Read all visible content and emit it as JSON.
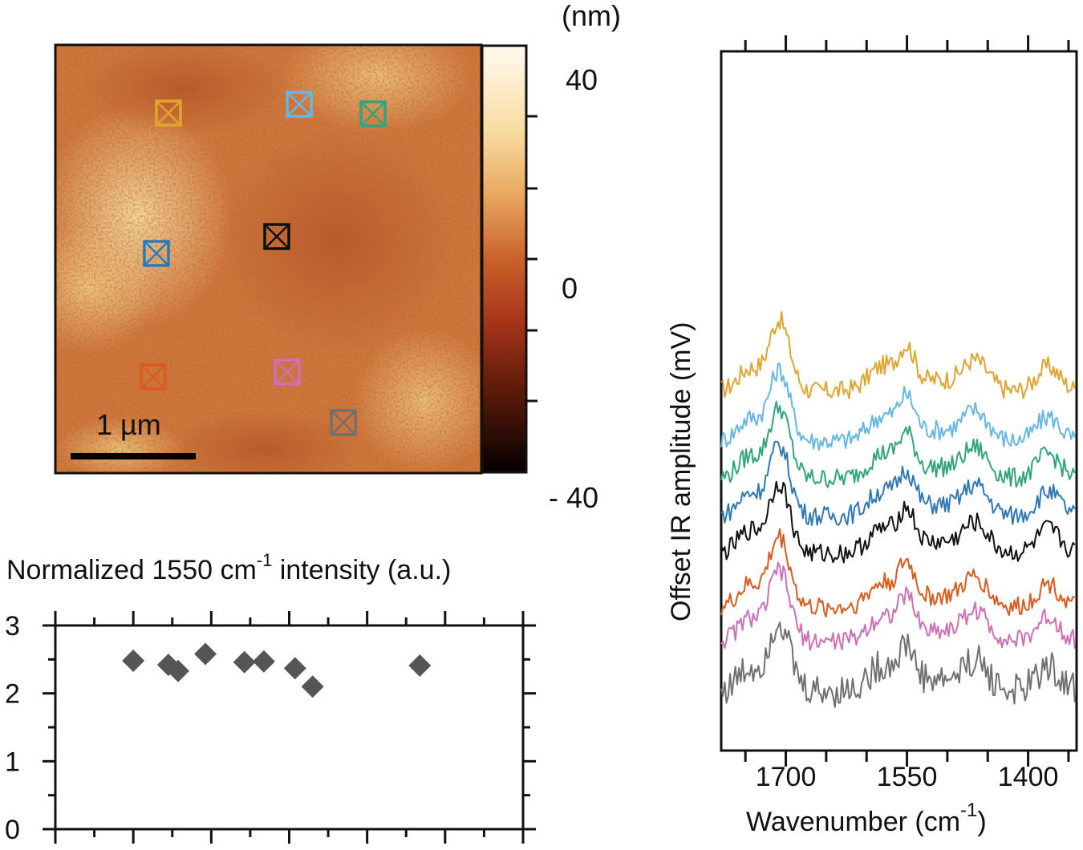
{
  "afm_map": {
    "colorbar_unit": "(nm)",
    "colorbar_ticks": [
      "40",
      "0",
      "- 40"
    ],
    "colorbar_range": [
      -40,
      40
    ],
    "scale_bar_label": "1 µm",
    "markers": [
      {
        "name": "marker-orange",
        "color": "#e1a52e"
      },
      {
        "name": "marker-lightblue",
        "color": "#64b8e6"
      },
      {
        "name": "marker-green",
        "color": "#2fa67e"
      },
      {
        "name": "marker-blue",
        "color": "#2e78b8"
      },
      {
        "name": "marker-black",
        "color": "#111111"
      },
      {
        "name": "marker-redorange",
        "color": "#dc5a1c"
      },
      {
        "name": "marker-pink",
        "color": "#cf6fb7"
      },
      {
        "name": "marker-gray",
        "color": "#707070"
      }
    ]
  },
  "chart_data": [
    {
      "type": "scatter",
      "title": "Normalized 1550 cm",
      "title_superscript": "-1",
      "title_suffix": " intensity (a.u.)",
      "ylim": [
        0,
        3
      ],
      "y_ticks": [
        "0",
        "1",
        "2",
        "3"
      ],
      "xlim": [
        0,
        12
      ],
      "marker": "diamond",
      "marker_color": "#555555",
      "points": [
        {
          "x": 2.0,
          "y": 2.48
        },
        {
          "x": 2.9,
          "y": 2.42
        },
        {
          "x": 3.15,
          "y": 2.33
        },
        {
          "x": 3.85,
          "y": 2.58
        },
        {
          "x": 4.85,
          "y": 2.46
        },
        {
          "x": 5.35,
          "y": 2.47
        },
        {
          "x": 6.15,
          "y": 2.37
        },
        {
          "x": 6.6,
          "y": 2.1
        },
        {
          "x": 9.35,
          "y": 2.41
        }
      ]
    },
    {
      "type": "line",
      "xlabel": "Wavenumber (cm",
      "xlabel_superscript": "-1",
      "xlabel_suffix": ")",
      "ylabel": "Offset IR amplitude (mV)",
      "x_ticks": [
        "1700",
        "1550",
        "1400"
      ],
      "xlim": [
        1780,
        1340
      ],
      "series": [
        {
          "name": "orange",
          "color": "#e1a52e",
          "offset": 8.4
        },
        {
          "name": "light-blue",
          "color": "#64b8e6",
          "offset": 7.2
        },
        {
          "name": "green",
          "color": "#2fa67e",
          "offset": 6.3
        },
        {
          "name": "blue",
          "color": "#2e78b8",
          "offset": 5.4
        },
        {
          "name": "black",
          "color": "#111111",
          "offset": 4.5
        },
        {
          "name": "red-orange",
          "color": "#dc5a1c",
          "offset": 3.2
        },
        {
          "name": "pink",
          "color": "#cf6fb7",
          "offset": 2.4
        },
        {
          "name": "gray",
          "color": "#707070",
          "offset": 1.2
        }
      ]
    }
  ]
}
